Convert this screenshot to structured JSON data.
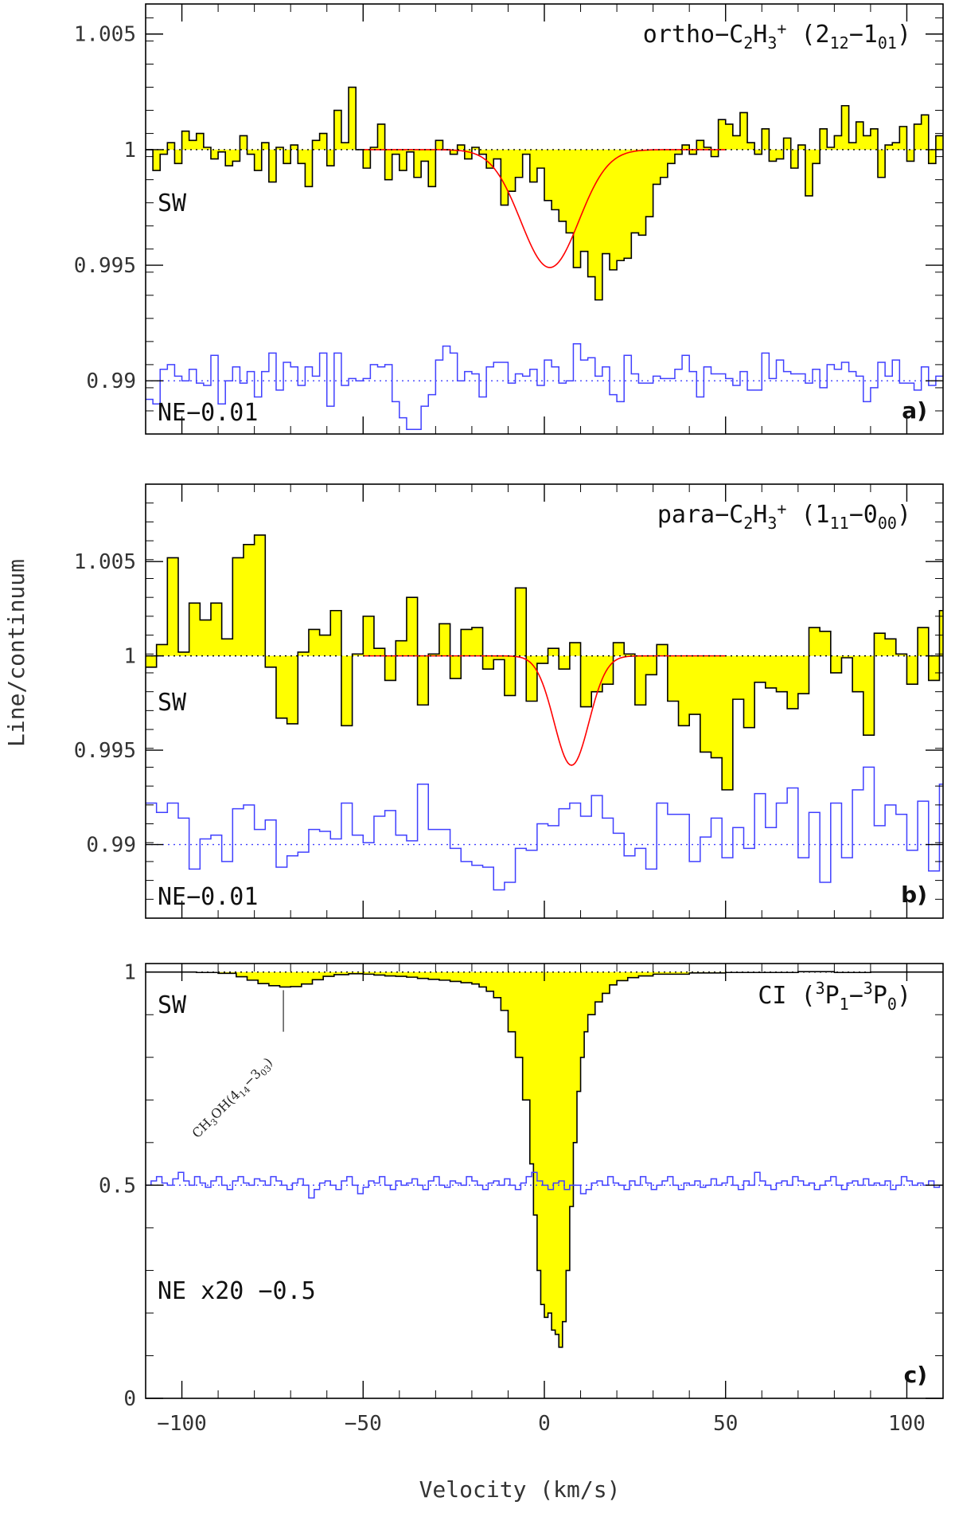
{
  "xlabel": "Velocity (km/s)",
  "ylabel": "Line/continuum",
  "colors": {
    "sw_fill": "#ffff00",
    "sw_line": "#000000",
    "ne_line": "#4040ff",
    "fit_line": "#ff0000"
  },
  "chart_data": [
    {
      "type": "line",
      "panel": "a)",
      "title_parts": {
        "pre": "ortho−C",
        "s1": "2",
        "m1": "H",
        "s2": "3",
        "sup": "+",
        "m2": " (2",
        "s3": "12",
        "m3": "−1",
        "s4": "01",
        "post": ")"
      },
      "sw_label": "SW",
      "ne_label": "NE−0.01",
      "xlim": [
        -110,
        110
      ],
      "ylim": [
        0.9877,
        1.0063
      ],
      "yticks": [
        0.99,
        0.995,
        1,
        1.005
      ],
      "ytick_labels": [
        "0.99",
        "0.995",
        "1",
        "1.005"
      ],
      "baselines": [
        1,
        0.99
      ],
      "sw_fit": {
        "amp": -0.0051,
        "center": 1.5,
        "sigma": 8
      },
      "ne_ymin": 0.9877,
      "series": [
        {
          "name": "SW",
          "x0": -110,
          "dx": 2,
          "values": [
            1.0,
            0.9991,
            0.9998,
            1.0003,
            0.9994,
            1.0008,
            1.0004,
            1.0007,
            1.0001,
            0.9996,
            0.9999,
            0.9993,
            0.9995,
            1.0006,
            0.9998,
            0.9991,
            1.0003,
            0.9986,
            1.0001,
            0.9994,
            1.0002,
            0.9994,
            0.9984,
            1.0004,
            1.0007,
            0.9993,
            1.0017,
            1.0003,
            1.0027,
            1.0,
            0.9992,
            1.0001,
            1.0011,
            0.9987,
            0.9998,
            0.9991,
            0.9999,
            0.9988,
            0.9995,
            0.9984,
            1.0004,
            1.0,
            0.9998,
            1.0002,
            0.9996,
            1.0001,
            0.9998,
            0.9992,
            0.9996,
            0.9976,
            0.9982,
            0.9988,
            0.9998,
            0.9986,
            0.9992,
            0.9978,
            0.9974,
            0.9969,
            0.9964,
            0.9949,
            0.9956,
            0.9945,
            0.9935,
            0.9955,
            0.9948,
            0.9952,
            0.9953,
            0.9964,
            0.9963,
            0.9971,
            0.9985,
            0.9988,
            0.9994,
            0.9998,
            1.0002,
            0.9998,
            1.0004,
            1.0001,
            0.9997,
            1.0013,
            1.0011,
            1.0006,
            1.0016,
            1.0003,
            0.9998,
            1.0009,
            0.9995,
            0.9996,
            1.0005,
            0.9992,
            1.0002,
            0.998,
            0.9994,
            1.0009,
            1.0001,
            1.0006,
            1.0019,
            1.0003,
            1.0012,
            1.0006,
            1.0009,
            0.9988,
            1.0002,
            1.0003,
            1.001,
            0.9995,
            1.0011,
            1.0015,
            0.9994,
            1.0006
          ]
        },
        {
          "name": "NE−0.01",
          "x0": -110,
          "dx": 2,
          "values": [
            0.9992,
            0.999,
            1.0005,
            1.0007,
            1.0002,
            1.0,
            1.0005,
            0.9999,
            0.9998,
            1.0011,
            0.999,
            1.0,
            1.0006,
            0.9999,
            1.0004,
            0.9993,
            1.0004,
            1.0012,
            0.9996,
            1.0008,
            1.0006,
            0.9998,
            1.0006,
            1.0002,
            1.0012,
            0.9989,
            1.0012,
            0.9998,
            1.0001,
            1.0,
            1.0001,
            1.0007,
            1.0006,
            1.0007,
            0.9991,
            0.9984,
            0.9979,
            0.9979,
            0.9989,
            0.9994,
            1.0009,
            1.0015,
            1.0012,
            1.0,
            1.0004,
            1.0003,
            0.9993,
            1.0006,
            1.0008,
            1.0008,
            0.9999,
            1.0003,
            1.0002,
            1.0005,
            0.9998,
            1.0009,
            1.0006,
            0.9999,
            1.0,
            1.0016,
            1.0009,
            1.001,
            1.0002,
            1.0006,
            0.9994,
            0.9991,
            1.0011,
            1.0003,
            0.9999,
            0.9999,
            1.0002,
            1.0001,
            1.0001,
            1.0005,
            1.0011,
            1.0004,
            0.9993,
            1.0006,
            1.0003,
            1.0003,
            1.0001,
            0.9998,
            1.0004,
            0.9996,
            0.9996,
            1.0012,
            1.0001,
            1.0009,
            1.0004,
            1.0003,
            1.0003,
            0.9999,
            1.0005,
            0.9997,
            1.0007,
            1.0005,
            1.0008,
            1.0004,
            1.0002,
            0.9991,
            0.9997,
            1.0008,
            1.0002,
            1.0009,
            0.9999,
            0.9999,
            0.9996,
            1.0006,
            0.9998,
            1.0002
          ]
        }
      ]
    },
    {
      "type": "line",
      "panel": "b)",
      "title_parts": {
        "pre": "para−C",
        "s1": "2",
        "m1": "H",
        "s2": "3",
        "sup": "+",
        "m2": " (1",
        "s3": "11",
        "m3": "−0",
        "s4": "00",
        "post": ")"
      },
      "sw_label": "SW",
      "ne_label": "NE−0.01",
      "xlim": [
        -110,
        110
      ],
      "ylim": [
        0.9861,
        1.0091
      ],
      "yticks": [
        0.99,
        0.995,
        1,
        1.005
      ],
      "ytick_labels": [
        "0.99",
        "0.995",
        "1",
        "1.005"
      ],
      "baselines": [
        1,
        0.99
      ],
      "sw_fit": {
        "amp": -0.0058,
        "center": 7.5,
        "sigma": 4.8
      },
      "ne_ymin": 0.9861,
      "series": [
        {
          "name": "SW",
          "x0": -110,
          "dx": 3,
          "values": [
            0.9994,
            1.0006,
            1.0052,
            1.0002,
            1.0028,
            1.0019,
            1.0028,
            1.0009,
            1.0052,
            1.0059,
            1.0064,
            0.9994,
            0.9967,
            0.9964,
            1.0002,
            1.0014,
            1.0011,
            1.0024,
            0.9963,
            1.0001,
            1.0021,
            1.0004,
            0.9987,
            1.0008,
            1.0031,
            0.9974,
            1.0001,
            1.0017,
            0.9988,
            1.0014,
            1.0015,
            0.9993,
            0.9998,
            0.9979,
            1.0036,
            0.9976,
            0.9996,
            1.0004,
            0.9993,
            1.0007,
            0.9973,
            0.9981,
            0.9985,
            1.0007,
            1.0001,
            0.9974,
            0.999,
            1.0006,
            0.9976,
            0.9963,
            0.9969,
            0.9949,
            0.9946,
            0.9929,
            0.9977,
            0.9962,
            0.9986,
            0.9983,
            0.9981,
            0.9972,
            0.998,
            1.0015,
            1.0013,
            0.9991,
            0.9999,
            0.9981,
            0.9958,
            1.0012,
            1.0009,
            1.0001,
            0.9985,
            1.0015,
            0.9987,
            1.0024,
            0.999,
            1.0007,
            1.0019,
            1.0018,
            1.0012,
            1.0021,
            1.0021,
            1.0037,
            1.0012,
            1.0022,
            0.9981,
            0.9992,
            1.0006
          ]
        },
        {
          "name": "NE−0.01",
          "x0": -110,
          "dx": 3,
          "values": [
            1.0022,
            1.0017,
            1.0022,
            1.0014,
            0.9987,
            1.0003,
            1.0005,
            0.9991,
            1.0019,
            1.0021,
            1.0008,
            1.0013,
            0.9988,
            0.9994,
            0.9996,
            1.0008,
            1.0007,
            1.0003,
            1.0022,
            1.0005,
            1.0001,
            1.0015,
            1.0018,
            1.0005,
            1.0002,
            1.0032,
            1.0008,
            1.0008,
            0.9998,
            0.9991,
            0.9989,
            0.9988,
            0.9976,
            0.998,
            0.9998,
            0.9997,
            1.0011,
            1.001,
            1.0019,
            1.0022,
            1.0015,
            1.0026,
            1.0014,
            1.0006,
            0.9994,
            0.9998,
            0.9987,
            1.0022,
            1.0016,
            1.0016,
            0.9991,
            1.0004,
            1.0014,
            0.9993,
            1.0009,
            0.9998,
            1.0027,
            1.0009,
            1.0022,
            1.003,
            0.9993,
            1.0017,
            0.998,
            1.0022,
            0.9993,
            1.0029,
            1.0041,
            1.001,
            1.0021,
            1.0016,
            0.9997,
            1.0023,
            0.9986,
            1.0032,
            1.0021,
            1.0025,
            1.0009,
            1.0011,
            1.0017,
            1.0003,
            1.0013,
            1.0032,
            1.0008,
            1.0021,
            1.0013,
            0.9993,
            1.0019
          ]
        }
      ]
    },
    {
      "type": "line",
      "panel": "c)",
      "title_parts": {
        "pre": "CI (",
        "sup1": "3",
        "m1": "P",
        "s1": "1",
        "m2": "−",
        "sup2": "3",
        "m3": "P",
        "s2": "0",
        "post": ")"
      },
      "sw_label": "SW",
      "ne_label": "NE x20 −0.5",
      "annotation": {
        "text_pre": "CH",
        "s1": "3",
        "m1": "OH(4",
        "s2": "14",
        "m2": "−3",
        "s3": "03",
        "post": ")",
        "x": -72
      },
      "xlim": [
        -110,
        110
      ],
      "ylim": [
        0,
        1.02
      ],
      "xticks": [
        -100,
        -50,
        0,
        50,
        100
      ],
      "xtick_labels": [
        "−100",
        "−50",
        "0",
        "50",
        "100"
      ],
      "yticks": [
        0,
        0.5,
        1
      ],
      "ytick_labels": [
        "0",
        "0.5",
        "1"
      ],
      "baselines": [
        1,
        0.5
      ],
      "ne_ymin": 0.5,
      "series": [
        {
          "name": "SW",
          "points": [
            [
              -110,
              1.0
            ],
            [
              -96,
              0.999
            ],
            [
              -90,
              0.997
            ],
            [
              -85,
              0.989
            ],
            [
              -82,
              0.981
            ],
            [
              -79,
              0.973
            ],
            [
              -76,
              0.968
            ],
            [
              -73,
              0.965
            ],
            [
              -70,
              0.966
            ],
            [
              -67,
              0.972
            ],
            [
              -64,
              0.982
            ],
            [
              -61,
              0.99
            ],
            [
              -58,
              0.994
            ],
            [
              -54,
              0.996
            ],
            [
              -50,
              0.995
            ],
            [
              -47,
              0.993
            ],
            [
              -44,
              0.991
            ],
            [
              -41,
              0.99
            ],
            [
              -38,
              0.988
            ],
            [
              -35,
              0.985
            ],
            [
              -32,
              0.983
            ],
            [
              -29,
              0.981
            ],
            [
              -26,
              0.978
            ],
            [
              -23,
              0.975
            ],
            [
              -20,
              0.972
            ],
            [
              -18,
              0.965
            ],
            [
              -16,
              0.955
            ],
            [
              -14,
              0.94
            ],
            [
              -12,
              0.91
            ],
            [
              -10,
              0.86
            ],
            [
              -8,
              0.8
            ],
            [
              -6,
              0.7
            ],
            [
              -4,
              0.55
            ],
            [
              -3,
              0.43
            ],
            [
              -2,
              0.3
            ],
            [
              -1,
              0.22
            ],
            [
              0,
              0.19
            ],
            [
              1,
              0.2
            ],
            [
              2,
              0.16
            ],
            [
              3,
              0.15
            ],
            [
              4,
              0.12
            ],
            [
              5,
              0.18
            ],
            [
              6,
              0.3
            ],
            [
              7,
              0.45
            ],
            [
              8,
              0.6
            ],
            [
              9,
              0.72
            ],
            [
              10,
              0.8
            ],
            [
              11,
              0.86
            ],
            [
              12,
              0.9
            ],
            [
              14,
              0.93
            ],
            [
              16,
              0.95
            ],
            [
              18,
              0.97
            ],
            [
              20,
              0.98
            ],
            [
              23,
              0.987
            ],
            [
              26,
              0.991
            ],
            [
              30,
              0.995
            ],
            [
              40,
              0.998
            ],
            [
              50,
              0.999
            ],
            [
              60,
              0.999
            ],
            [
              70,
              1.001
            ],
            [
              80,
              0.999
            ],
            [
              90,
              1.0
            ],
            [
              100,
              1.0
            ],
            [
              110,
              1.0
            ]
          ]
        },
        {
          "name": "NE x20 −0.5",
          "x0": -110,
          "dx": 1.5,
          "values": [
            0.5,
            0.51,
            0.52,
            0.505,
            0.5,
            0.515,
            0.53,
            0.51,
            0.5,
            0.52,
            0.505,
            0.495,
            0.51,
            0.52,
            0.5,
            0.49,
            0.51,
            0.52,
            0.505,
            0.5,
            0.515,
            0.51,
            0.5,
            0.52,
            0.51,
            0.5,
            0.49,
            0.505,
            0.515,
            0.5,
            0.47,
            0.49,
            0.505,
            0.51,
            0.5,
            0.49,
            0.51,
            0.52,
            0.5,
            0.48,
            0.495,
            0.51,
            0.505,
            0.52,
            0.5,
            0.49,
            0.51,
            0.5,
            0.505,
            0.515,
            0.5,
            0.49,
            0.51,
            0.52,
            0.5,
            0.495,
            0.51,
            0.505,
            0.5,
            0.52,
            0.51,
            0.5,
            0.49,
            0.505,
            0.51,
            0.5,
            0.515,
            0.5,
            0.49,
            0.505,
            0.52,
            0.53,
            0.51,
            0.5,
            0.49,
            0.505,
            0.51,
            0.49,
            0.5,
            0.5,
            0.48,
            0.49,
            0.505,
            0.51,
            0.5,
            0.52,
            0.505,
            0.5,
            0.49,
            0.51,
            0.5,
            0.52,
            0.505,
            0.49,
            0.5,
            0.51,
            0.52,
            0.5,
            0.49,
            0.505,
            0.5,
            0.51,
            0.495,
            0.5,
            0.515,
            0.5,
            0.505,
            0.52,
            0.5,
            0.49,
            0.51,
            0.5,
            0.53,
            0.51,
            0.5,
            0.49,
            0.505,
            0.51,
            0.5,
            0.52,
            0.51,
            0.5,
            0.505,
            0.49,
            0.5,
            0.51,
            0.52,
            0.5,
            0.49,
            0.505,
            0.51,
            0.5,
            0.515,
            0.5,
            0.505,
            0.5,
            0.51,
            0.49,
            0.5,
            0.52,
            0.51,
            0.5,
            0.505,
            0.5,
            0.51,
            0.495,
            0.5,
            0.505
          ]
        }
      ]
    }
  ]
}
